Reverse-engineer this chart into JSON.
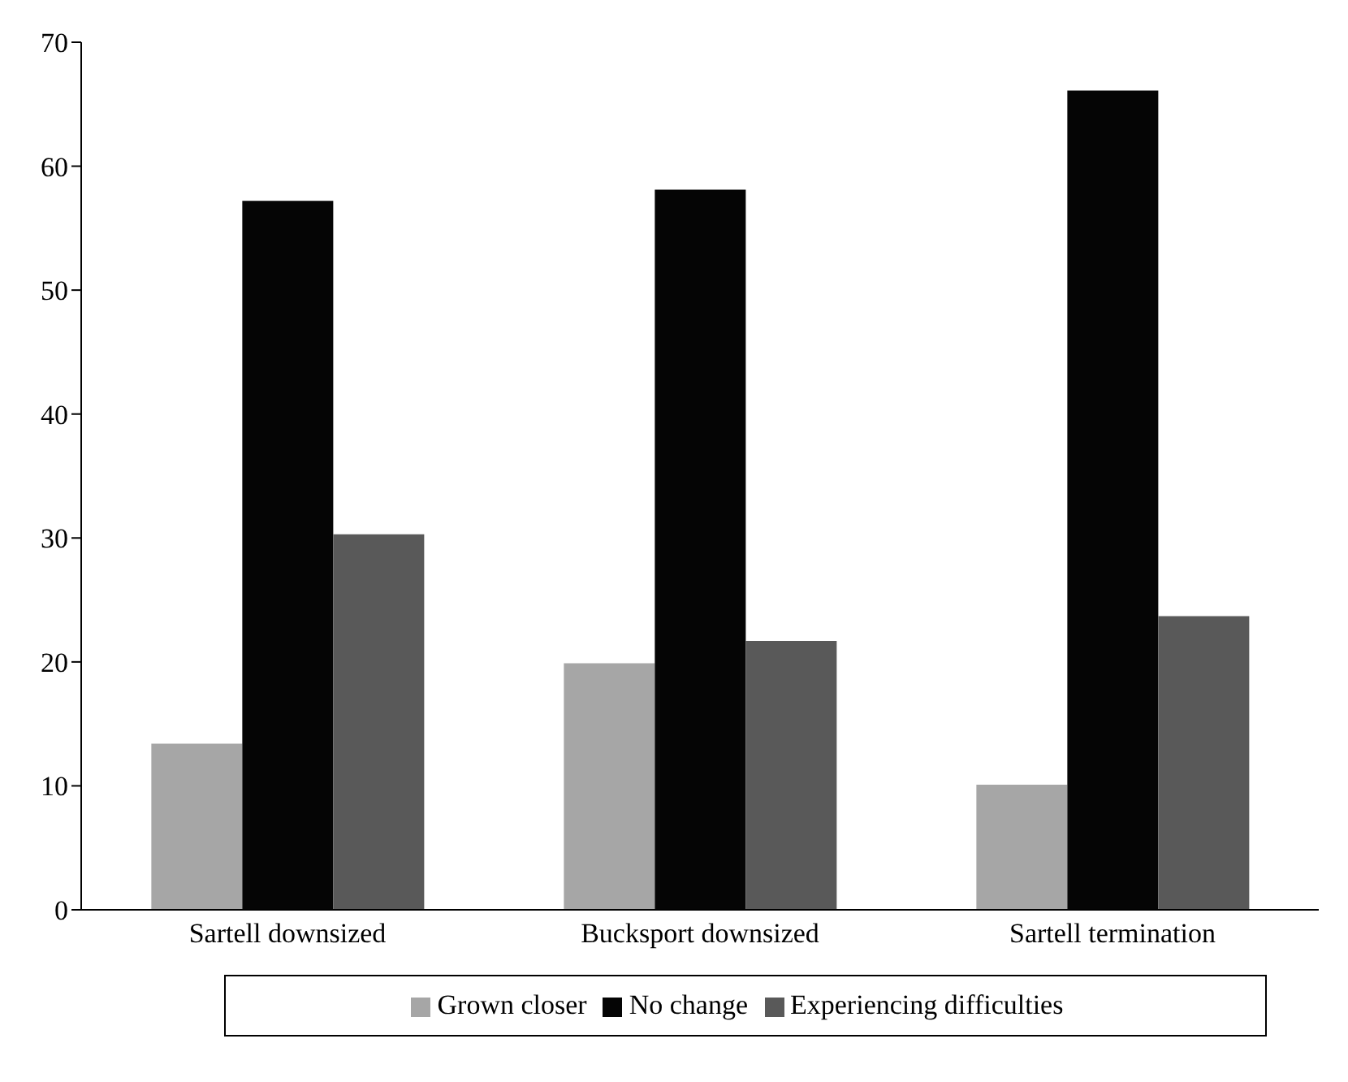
{
  "chart_data": {
    "type": "bar",
    "categories": [
      "Sartell downsized",
      "Bucksport downsized",
      "Sartell termination"
    ],
    "series": [
      {
        "name": "Grown closer",
        "color": "#a6a6a6",
        "values": [
          13.4,
          19.9,
          10.1
        ]
      },
      {
        "name": "No change",
        "color": "#050505",
        "values": [
          57.2,
          58.1,
          66.1
        ]
      },
      {
        "name": "Experiencing difficulties",
        "color": "#595959",
        "values": [
          30.3,
          21.7,
          23.7
        ]
      }
    ],
    "ylim": [
      0,
      70
    ],
    "yticks": [
      0,
      10,
      20,
      30,
      40,
      50,
      60,
      70
    ],
    "grid": false,
    "legend": "bottom"
  }
}
